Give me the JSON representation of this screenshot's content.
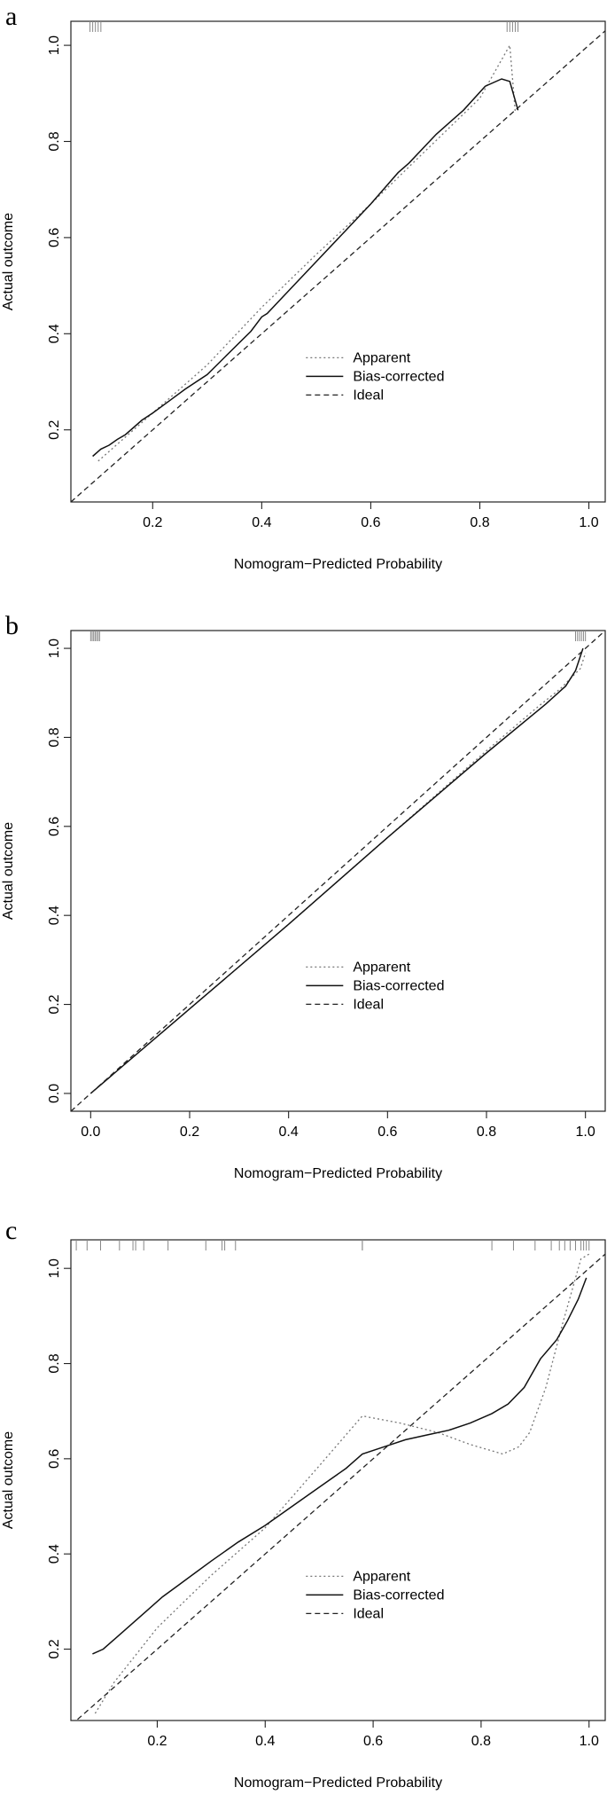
{
  "figure": {
    "panels": [
      "a",
      "b",
      "c"
    ]
  },
  "chart_data": [
    {
      "type": "line",
      "panel_label": "a",
      "xlabel": "Nomogram−Predicted Probability",
      "ylabel": "Actual outcome",
      "xlim": [
        0.05,
        1.03
      ],
      "ylim": [
        0.05,
        1.05
      ],
      "xticks": [
        0.2,
        0.4,
        0.6,
        0.8,
        1.0
      ],
      "xtick_labels": [
        "0.2",
        "0.4",
        "0.6",
        "0.8",
        "1.0"
      ],
      "yticks": [
        0.2,
        0.4,
        0.6,
        0.8,
        1.0
      ],
      "ytick_labels": [
        "0.2",
        "0.4",
        "0.6",
        "0.8",
        "1.0"
      ],
      "grid": false,
      "legend_position": "bottom-right",
      "series": [
        {
          "name": "Apparent",
          "style": "dotted",
          "color": "#777777",
          "x": [
            0.1,
            0.2,
            0.3,
            0.4,
            0.5,
            0.6,
            0.7,
            0.8,
            0.855,
            0.865
          ],
          "y": [
            0.135,
            0.235,
            0.335,
            0.455,
            0.565,
            0.67,
            0.78,
            0.89,
            1.0,
            0.86
          ]
        },
        {
          "name": "Bias-corrected",
          "style": "solid",
          "color": "#111111",
          "x": [
            0.09,
            0.105,
            0.12,
            0.135,
            0.15,
            0.165,
            0.18,
            0.2,
            0.23,
            0.26,
            0.3,
            0.34,
            0.38,
            0.4,
            0.41,
            0.45,
            0.5,
            0.55,
            0.6,
            0.65,
            0.67,
            0.72,
            0.77,
            0.81,
            0.84,
            0.855,
            0.87
          ],
          "y": [
            0.145,
            0.16,
            0.168,
            0.18,
            0.19,
            0.205,
            0.22,
            0.235,
            0.26,
            0.285,
            0.315,
            0.36,
            0.405,
            0.435,
            0.442,
            0.49,
            0.55,
            0.61,
            0.67,
            0.735,
            0.755,
            0.815,
            0.865,
            0.915,
            0.93,
            0.925,
            0.865
          ]
        },
        {
          "name": "Ideal",
          "style": "dashed",
          "color": "#222222",
          "x": [
            0.05,
            1.03
          ],
          "y": [
            0.05,
            1.03
          ]
        }
      ],
      "rug": {
        "top": [
          0.085,
          0.09,
          0.095,
          0.1,
          0.105,
          0.85,
          0.855,
          0.86,
          0.865,
          0.87
        ]
      }
    },
    {
      "type": "line",
      "panel_label": "b",
      "xlabel": "Nomogram−Predicted Probability",
      "ylabel": "Actual outcome",
      "xlim": [
        -0.04,
        1.04
      ],
      "ylim": [
        -0.04,
        1.04
      ],
      "xticks": [
        0.0,
        0.2,
        0.4,
        0.6,
        0.8,
        1.0
      ],
      "xtick_labels": [
        "0.0",
        "0.2",
        "0.4",
        "0.6",
        "0.8",
        "1.0"
      ],
      "yticks": [
        0.0,
        0.2,
        0.4,
        0.6,
        0.8,
        1.0
      ],
      "ytick_labels": [
        "0.0",
        "0.2",
        "0.4",
        "0.6",
        "0.8",
        "1.0"
      ],
      "grid": false,
      "legend_position": "bottom-right",
      "series": [
        {
          "name": "Apparent",
          "style": "dotted",
          "color": "#777777",
          "x": [
            0.0,
            0.2,
            0.4,
            0.6,
            0.8,
            0.9,
            0.95,
            0.99,
            1.0
          ],
          "y": [
            0.0,
            0.19,
            0.38,
            0.575,
            0.77,
            0.865,
            0.91,
            0.955,
            0.99
          ]
        },
        {
          "name": "Bias-corrected",
          "style": "solid",
          "color": "#111111",
          "x": [
            0.0,
            0.2,
            0.4,
            0.6,
            0.8,
            0.92,
            0.96,
            0.98,
            0.995
          ],
          "y": [
            0.0,
            0.19,
            0.38,
            0.575,
            0.765,
            0.875,
            0.915,
            0.95,
            1.0
          ]
        },
        {
          "name": "Ideal",
          "style": "dashed",
          "color": "#222222",
          "x": [
            -0.04,
            1.04
          ],
          "y": [
            -0.04,
            1.04
          ]
        }
      ],
      "rug": {
        "top": [
          0.0,
          0.003,
          0.006,
          0.009,
          0.012,
          0.015,
          0.018,
          0.98,
          0.984,
          0.988,
          0.992,
          0.996,
          1.0
        ]
      }
    },
    {
      "type": "line",
      "panel_label": "c",
      "xlabel": "Nomogram−Predicted Probability",
      "ylabel": "Actual outcome",
      "xlim": [
        0.04,
        1.03
      ],
      "ylim": [
        0.05,
        1.06
      ],
      "xticks": [
        0.2,
        0.4,
        0.6,
        0.8,
        1.0
      ],
      "xtick_labels": [
        "0.2",
        "0.4",
        "0.6",
        "0.8",
        "1.0"
      ],
      "yticks": [
        0.2,
        0.4,
        0.6,
        0.8,
        1.0
      ],
      "ytick_labels": [
        "0.2",
        "0.4",
        "0.6",
        "0.8",
        "1.0"
      ],
      "grid": false,
      "legend_position": "bottom-right",
      "series": [
        {
          "name": "Apparent",
          "style": "dotted",
          "color": "#777777",
          "x": [
            0.085,
            0.12,
            0.2,
            0.3,
            0.4,
            0.5,
            0.58,
            0.65,
            0.72,
            0.78,
            0.84,
            0.87,
            0.89,
            0.92,
            0.95,
            0.985,
            1.0
          ],
          "y": [
            0.065,
            0.13,
            0.245,
            0.355,
            0.455,
            0.585,
            0.69,
            0.675,
            0.655,
            0.63,
            0.61,
            0.625,
            0.655,
            0.75,
            0.88,
            1.02,
            1.03
          ]
        },
        {
          "name": "Bias-corrected",
          "style": "solid",
          "color": "#111111",
          "x": [
            0.08,
            0.1,
            0.12,
            0.15,
            0.18,
            0.21,
            0.24,
            0.27,
            0.3,
            0.35,
            0.4,
            0.45,
            0.5,
            0.55,
            0.58,
            0.62,
            0.66,
            0.7,
            0.74,
            0.78,
            0.82,
            0.85,
            0.88,
            0.91,
            0.94,
            0.96,
            0.98,
            0.995
          ],
          "y": [
            0.19,
            0.2,
            0.22,
            0.25,
            0.28,
            0.31,
            0.335,
            0.36,
            0.385,
            0.425,
            0.46,
            0.5,
            0.54,
            0.58,
            0.61,
            0.625,
            0.64,
            0.65,
            0.66,
            0.675,
            0.695,
            0.715,
            0.75,
            0.81,
            0.85,
            0.89,
            0.935,
            0.98
          ]
        },
        {
          "name": "Ideal",
          "style": "dashed",
          "color": "#222222",
          "x": [
            0.04,
            1.03
          ],
          "y": [
            0.04,
            1.03
          ]
        }
      ],
      "rug": {
        "top": [
          0.05,
          0.07,
          0.095,
          0.13,
          0.155,
          0.16,
          0.175,
          0.22,
          0.29,
          0.32,
          0.325,
          0.345,
          0.58,
          0.58,
          0.82,
          0.86,
          0.9,
          0.93,
          0.945,
          0.955,
          0.965,
          0.975,
          0.985,
          0.99,
          0.995,
          1.0
        ]
      }
    }
  ]
}
